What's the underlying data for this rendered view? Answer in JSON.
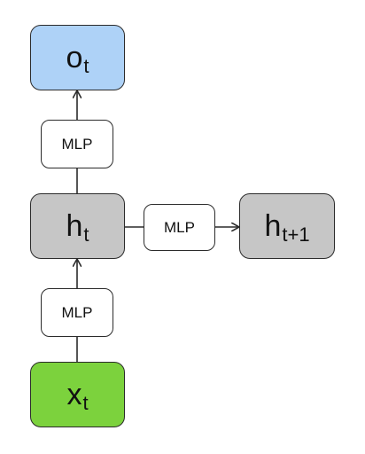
{
  "colors": {
    "output": "#aed2f7",
    "hidden": "#c6c6c6",
    "input": "#7cd23d",
    "mlp": "#ffffff",
    "stroke": "#2b2b2b"
  },
  "nodes": {
    "output": {
      "base": "o",
      "sub": "t"
    },
    "hidden_current": {
      "base": "h",
      "sub": "t"
    },
    "hidden_next": {
      "base": "h",
      "sub": "t+1"
    },
    "input": {
      "base": "x",
      "sub": "t"
    },
    "mlp_top": {
      "label": "MLP"
    },
    "mlp_right": {
      "label": "MLP"
    },
    "mlp_bottom": {
      "label": "MLP"
    }
  },
  "edges": [
    {
      "from": "input",
      "to": "mlp_bottom",
      "arrow": false
    },
    {
      "from": "mlp_bottom",
      "to": "hidden_current",
      "arrow": true
    },
    {
      "from": "hidden_current",
      "to": "mlp_top",
      "arrow": false
    },
    {
      "from": "mlp_top",
      "to": "output",
      "arrow": true
    },
    {
      "from": "hidden_current",
      "to": "mlp_right",
      "arrow": false
    },
    {
      "from": "mlp_right",
      "to": "hidden_next",
      "arrow": true
    }
  ]
}
